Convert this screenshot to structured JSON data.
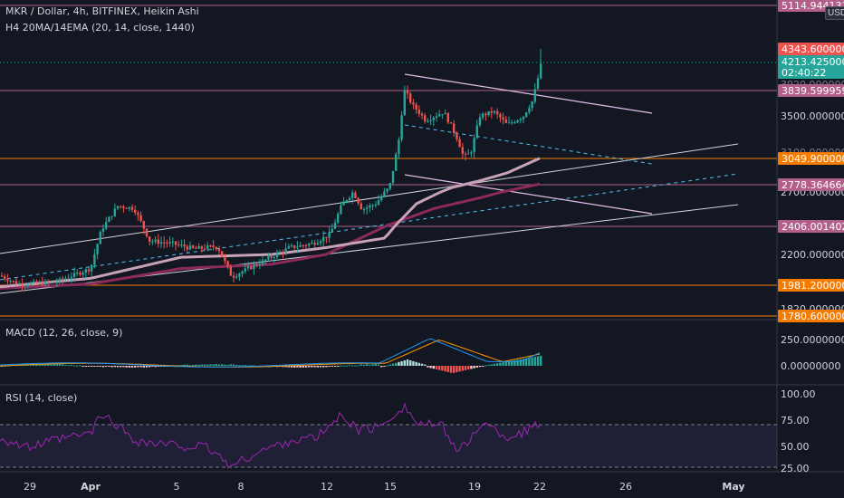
{
  "header": {
    "symbol_line": "MKR / Dollar, 4h, BITFINEX, Heikin Ashi",
    "ma_line": "H4 20MA/14EMA (20, 14, close, 1440)",
    "currency": "USD"
  },
  "macd": {
    "label": "MACD (12, 26, close, 9)"
  },
  "rsi": {
    "label": "RSI (14, close)"
  },
  "colors": {
    "background": "#131722",
    "up": "#26a69a",
    "down": "#ef5350",
    "level_pink": "#b25f8a",
    "level_orange": "#f57c00",
    "ma_slow": "#8b2a5b",
    "ma_fast": "#c8a2b6",
    "channel": "#d1d4dc",
    "macd_line": "#2196f3",
    "signal_line": "#ff9800",
    "rsi_line": "#9c27b0"
  },
  "chart_data": [
    {
      "type": "candlestick",
      "title": "MKR / Dollar, 4h, BITFINEX, Heikin Ashi",
      "x_ticks": [
        "29",
        "Apr",
        "5",
        "8",
        "12",
        "15",
        "19",
        "22",
        "26",
        "May"
      ],
      "y_ticks": [
        "3500.00000000",
        "2700.00000000",
        "2200.00000000",
        "1820.00000000"
      ],
      "overlapped_ticks": [
        "3920.00000000",
        "3100.00000000"
      ],
      "price_labels": [
        {
          "value": "5114.94413120",
          "kind": "level"
        },
        {
          "value": "4343.60000000",
          "kind": "high"
        },
        {
          "value": "4213.42500000",
          "kind": "last",
          "countdown": "02:40:22"
        },
        {
          "value": "3839.59995993",
          "kind": "level"
        },
        {
          "value": "3049.90000000",
          "kind": "level_orange"
        },
        {
          "value": "2778.36466413",
          "kind": "level"
        },
        {
          "value": "2406.00140244",
          "kind": "level"
        },
        {
          "value": "1981.20000000",
          "kind": "level_orange"
        },
        {
          "value": "1780.60000000",
          "kind": "level_orange"
        }
      ],
      "levels": [
        5114.94,
        3839.6,
        3049.9,
        2778.36,
        2406.0,
        1981.2,
        1780.6
      ],
      "key_points": [
        {
          "x": "Mar 29",
          "price": 2000
        },
        {
          "x": "Apr 3",
          "price": 2550
        },
        {
          "x": "Apr 8",
          "price": 2080
        },
        {
          "x": "Apr 12",
          "price": 2650
        },
        {
          "x": "Apr 15",
          "price": 3900
        },
        {
          "x": "Apr 18",
          "price": 2900
        },
        {
          "x": "Apr 20",
          "price": 3550
        },
        {
          "x": "Apr 22",
          "price": 4213
        }
      ],
      "series": [
        {
          "name": "",
          "role": "ma_slow"
        },
        {
          "name": "",
          "role": "ma_fast"
        }
      ]
    },
    {
      "type": "line",
      "title": "MACD (12, 26, close, 9)",
      "y_ticks": [
        "250.00000000",
        "0.00000000"
      ],
      "series": [
        {
          "name": "",
          "role": "macd"
        },
        {
          "name": "",
          "role": "signal"
        },
        {
          "name": "",
          "role": "histogram"
        }
      ]
    },
    {
      "type": "line",
      "title": "RSI (14, close)",
      "y_ticks": [
        "100.00",
        "75.00",
        "50.00",
        "25.00"
      ],
      "bands": [
        70,
        30
      ],
      "series": [
        {
          "name": "",
          "role": "rsi"
        }
      ]
    }
  ]
}
